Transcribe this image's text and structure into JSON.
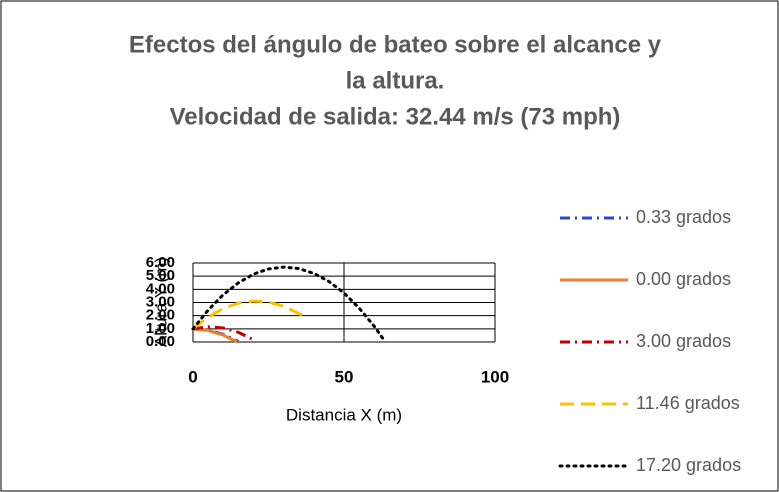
{
  "chart_data": {
    "type": "line",
    "title": [
      "Efectos del ángulo de bateo sobre el alcance y",
      "la altura.",
      "Velocidad de salida: 32.44 m/s (73 mph)"
    ],
    "x_label": "Distancia X (m)",
    "y_label": "Altura Y (m)",
    "xlim": [
      0,
      100
    ],
    "xticks": [
      0,
      50,
      100
    ],
    "ylim": [
      0,
      6
    ],
    "yticks": [
      {
        "value": 0,
        "label": "0.00"
      },
      {
        "value": 1,
        "label": "1.00"
      },
      {
        "value": 2,
        "label": "2.00"
      },
      {
        "value": 3,
        "label": "3.00"
      },
      {
        "value": 4,
        "label": "4.00"
      },
      {
        "value": 5,
        "label": "5.00"
      },
      {
        "value": 6,
        "label": "6.00"
      }
    ],
    "grid": true,
    "legend": "right",
    "series": [
      {
        "name": "0.33 grados",
        "color": "#2848d0",
        "dash": "dashdot",
        "x": [
          0,
          5,
          10,
          15
        ],
        "values": [
          1.0,
          0.91,
          0.59,
          0.05
        ]
      },
      {
        "name": "0.00 grados",
        "color": "#ed7d31",
        "dash": "solid",
        "x": [
          0,
          5,
          10,
          14.6
        ],
        "values": [
          1.0,
          0.88,
          0.53,
          0
        ]
      },
      {
        "name": "3.00 grados",
        "color": "#c00000",
        "dash": "dashdot",
        "x": [
          0,
          5,
          10,
          15,
          20
        ],
        "values": [
          1.0,
          1.15,
          1.06,
          0.74,
          0.18
        ]
      },
      {
        "name": "11.46 grados",
        "color": "#ffc000",
        "dash": "dash",
        "x": [
          0,
          5,
          10,
          15,
          20,
          25,
          30,
          35,
          38
        ],
        "values": [
          1.0,
          1.89,
          2.55,
          2.95,
          3.12,
          3.04,
          2.72,
          2.16,
          1.8
        ]
      },
      {
        "name": "17.20 grados",
        "color": "#000000",
        "dash": "dot",
        "x": [
          0,
          5,
          10,
          15,
          20,
          25,
          30,
          35,
          40,
          45,
          50,
          55,
          60,
          63.7
        ],
        "values": [
          1.0,
          2.42,
          3.59,
          4.49,
          5.15,
          5.55,
          5.69,
          5.58,
          5.21,
          4.6,
          3.72,
          2.58,
          1.2,
          0
        ]
      }
    ]
  }
}
